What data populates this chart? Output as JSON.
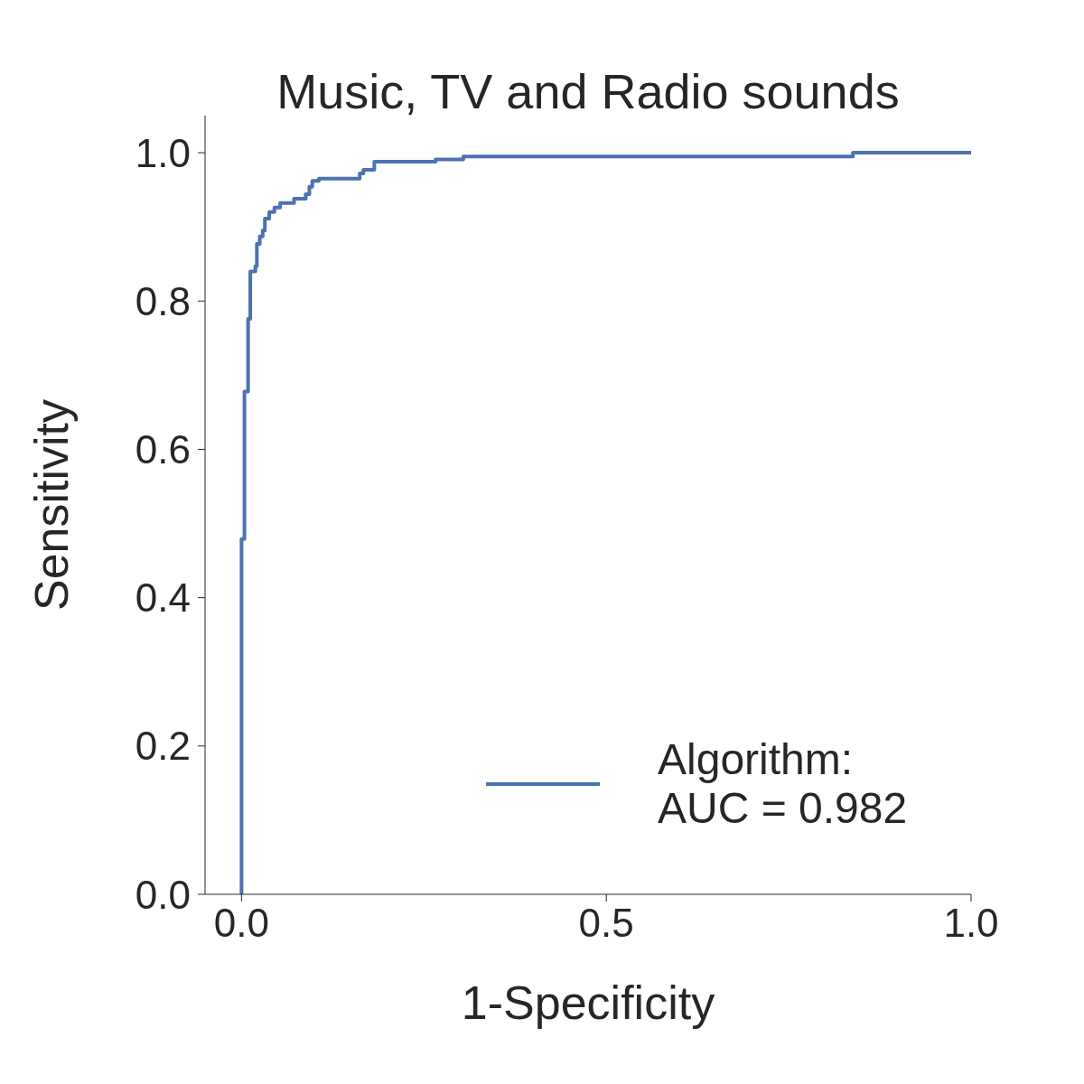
{
  "chart_data": {
    "type": "line",
    "title": "Music, TV and Radio sounds",
    "xlabel": "1-Specificity",
    "ylabel": "Sensitivity",
    "xlim": [
      -0.05,
      1.0
    ],
    "xticks": [
      {
        "value": 0,
        "label": "0.0"
      },
      0.5,
      {
        "value": 1,
        "label": "1.0"
      }
    ],
    "ylim": [
      0,
      1.05
    ],
    "yticks": [
      {
        "value": 0,
        "label": "0.0"
      },
      0.2,
      0.4,
      0.6,
      0.8,
      {
        "value": 1,
        "label": "1.0"
      }
    ],
    "grid": false,
    "legend": "bottom right",
    "marker": "none",
    "line_style": "solid",
    "series": [
      {
        "name": "Algorithm:\nAUC = 0.982",
        "color": "#4c72b0",
        "x": [
          0,
          0,
          0.004,
          0.004,
          0.009,
          0.009,
          0.012,
          0.012,
          0.019,
          0.019,
          0.021,
          0.021,
          0.025,
          0.025,
          0.029,
          0.029,
          0.032,
          0.032,
          0.038,
          0.038,
          0.045,
          0.045,
          0.053,
          0.053,
          0.072,
          0.072,
          0.088,
          0.088,
          0.093,
          0.093,
          0.097,
          0.097,
          0.106,
          0.106,
          0.162,
          0.162,
          0.167,
          0.167,
          0.182,
          0.182,
          0.266,
          0.266,
          0.304,
          0.304,
          0.838,
          0.838,
          1.0
        ],
        "values": [
          0,
          0.479,
          0.479,
          0.678,
          0.678,
          0.776,
          0.776,
          0.84,
          0.84,
          0.847,
          0.847,
          0.877,
          0.877,
          0.887,
          0.887,
          0.895,
          0.895,
          0.911,
          0.911,
          0.92,
          0.92,
          0.926,
          0.926,
          0.932,
          0.932,
          0.938,
          0.938,
          0.944,
          0.944,
          0.954,
          0.954,
          0.962,
          0.962,
          0.965,
          0.965,
          0.972,
          0.972,
          0.977,
          0.977,
          0.988,
          0.988,
          0.991,
          0.991,
          0.995,
          0.995,
          1.0,
          1.0
        ]
      }
    ]
  }
}
